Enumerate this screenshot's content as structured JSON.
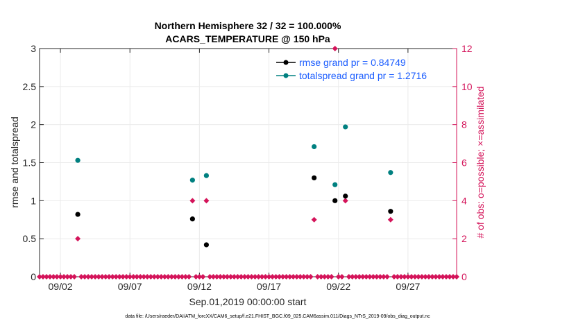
{
  "chart_data": {
    "type": "scatter",
    "title_line1": "Northern Hemisphere 32 / 32 = 100.000%",
    "title_line2": "ACARS_TEMPERATURE @ 150 hPa",
    "xlabel": "Sep.01,2019 00:00:00 start",
    "ylabel_left": "rmse and totalspread",
    "ylabel_right": "# of obs: o=possible; ×=assimilated",
    "footnote": "data file: /Users/raeder/DAI/ATM_forcXX/CAM6_setup/f.e21.FHIST_BGC.f09_025.CAM6assim.011/Diags_NTrS_2019-09/obs_diag_output.nc",
    "xlim": [
      0.5,
      30.5
    ],
    "ylim_left": [
      0,
      3
    ],
    "ylim_right": [
      0,
      12
    ],
    "x_ticks": [
      {
        "day": 2,
        "label": "09/02"
      },
      {
        "day": 7,
        "label": "09/07"
      },
      {
        "day": 12,
        "label": "09/12"
      },
      {
        "day": 17,
        "label": "09/17"
      },
      {
        "day": 22,
        "label": "09/22"
      },
      {
        "day": 27,
        "label": "09/27"
      }
    ],
    "y_ticks_left": [
      {
        "v": 0,
        "label": "0"
      },
      {
        "v": 0.5,
        "label": "0.5"
      },
      {
        "v": 1,
        "label": "1"
      },
      {
        "v": 1.5,
        "label": "1.5"
      },
      {
        "v": 2,
        "label": "2"
      },
      {
        "v": 2.5,
        "label": "2.5"
      },
      {
        "v": 3,
        "label": "3"
      }
    ],
    "y_ticks_right": [
      {
        "v": 0,
        "label": "0"
      },
      {
        "v": 2,
        "label": "2"
      },
      {
        "v": 4,
        "label": "4"
      },
      {
        "v": 6,
        "label": "6"
      },
      {
        "v": 8,
        "label": "8"
      },
      {
        "v": 10,
        "label": "10"
      },
      {
        "v": 12,
        "label": "12"
      }
    ],
    "series": [
      {
        "name": "rmse",
        "legend_label": "rmse grand pr = 0.84749",
        "color": "#000000",
        "points": [
          {
            "x": 3.25,
            "y": 0.82
          },
          {
            "x": 11.5,
            "y": 0.76
          },
          {
            "x": 12.5,
            "y": 0.42
          },
          {
            "x": 20.25,
            "y": 1.3
          },
          {
            "x": 21.75,
            "y": 1.0
          },
          {
            "x": 22.5,
            "y": 1.06
          },
          {
            "x": 25.75,
            "y": 0.86
          }
        ]
      },
      {
        "name": "totalspread",
        "legend_label": "totalspread grand pr = 1.2716",
        "color": "#008080",
        "points": [
          {
            "x": 3.25,
            "y": 1.53
          },
          {
            "x": 11.5,
            "y": 1.27
          },
          {
            "x": 12.5,
            "y": 1.33
          },
          {
            "x": 20.25,
            "y": 1.71
          },
          {
            "x": 21.75,
            "y": 1.21
          },
          {
            "x": 22.5,
            "y": 1.97
          },
          {
            "x": 25.75,
            "y": 1.37
          }
        ]
      }
    ],
    "obs_assimilated": {
      "color": "#d4145a",
      "nonzero": [
        {
          "x": 3.25,
          "y": 2
        },
        {
          "x": 11.5,
          "y": 4
        },
        {
          "x": 12.5,
          "y": 4
        },
        {
          "x": 20.25,
          "y": 3
        },
        {
          "x": 21.75,
          "y": 12
        },
        {
          "x": 22.5,
          "y": 4
        },
        {
          "x": 25.75,
          "y": 3
        }
      ],
      "baseline_step": 0.25,
      "baseline_value": 0
    }
  }
}
